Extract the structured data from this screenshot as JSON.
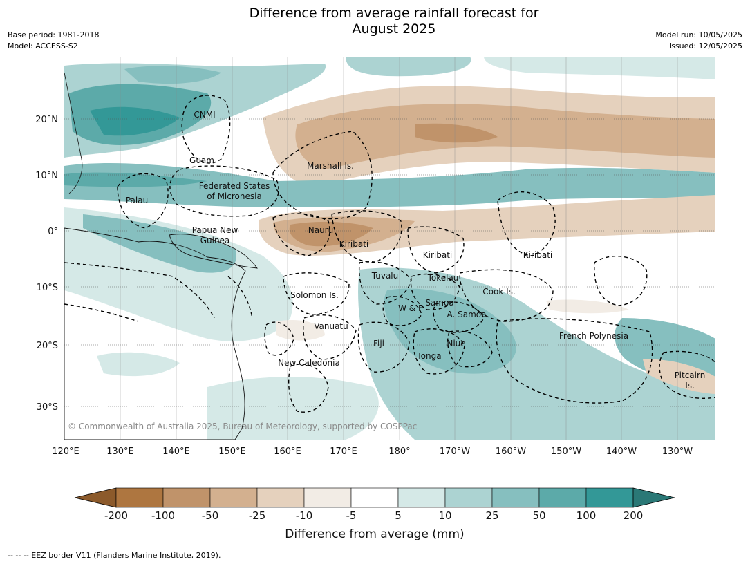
{
  "header": {
    "title_line1": "Difference from average rainfall forecast for",
    "title_line2": "August 2025",
    "base_period": "Base period: 1981-2018",
    "model": "Model: ACCESS-S2",
    "model_run": "Model run: 10/05/2025",
    "issued": "Issued: 12/05/2025"
  },
  "map": {
    "lat_ticks": [
      "20°N",
      "10°N",
      "0°",
      "10°S",
      "20°S",
      "30°S"
    ],
    "lon_ticks": [
      "120°E",
      "130°E",
      "140°E",
      "150°E",
      "160°E",
      "170°E",
      "180°",
      "170°W",
      "160°W",
      "150°W",
      "140°W",
      "130°W"
    ],
    "labels": {
      "cnmi": "CNMI",
      "guam": "Guam",
      "marshall": "Marshall Is.",
      "fsm1": "Federated States",
      "fsm2": "of Micronesia",
      "palau": "Palau",
      "nauru": "Nauru",
      "kiribati1": "Kiribati",
      "kiribati2": "Kiribati",
      "kiribati3": "Kiribati",
      "png1": "Papua New",
      "png2": "Guinea",
      "tuvalu": "Tuvalu",
      "tokelau": "Tokelau",
      "cook": "Cook Is.",
      "solomon": "Solomon Is.",
      "wf": "W & F",
      "samoa": "Samoa",
      "asamoa": "A. Samoa",
      "vanuatu": "Vanuatu",
      "fiji": "Fiji",
      "niue": "Niue",
      "tonga": "Tonga",
      "frenchpoly": "French Polynesia",
      "pitcairn1": "Pitcairn",
      "pitcairn2": "Is.",
      "newcal": "New Caledonia"
    },
    "copyright": "© Commonwealth of Australia 2025, Bureau of Meteorology, supported by COSPPac"
  },
  "colorbar": {
    "ticks": [
      "-200",
      "-100",
      "-50",
      "-25",
      "-10",
      "-5",
      "5",
      "10",
      "25",
      "50",
      "100",
      "200"
    ],
    "colors": [
      "#8c5a2b",
      "#ae7640",
      "#c0936a",
      "#d3b08f",
      "#e5d1bd",
      "#f2ece5",
      "#ffffff",
      "#d5e9e7",
      "#acd3d2",
      "#86bfbf",
      "#5caaa9",
      "#339897",
      "#2a7876"
    ],
    "label": "Difference from average (mm)"
  },
  "footer": "--  --  -- EEZ border V11 (Flanders Marine Institute, 2019)."
}
